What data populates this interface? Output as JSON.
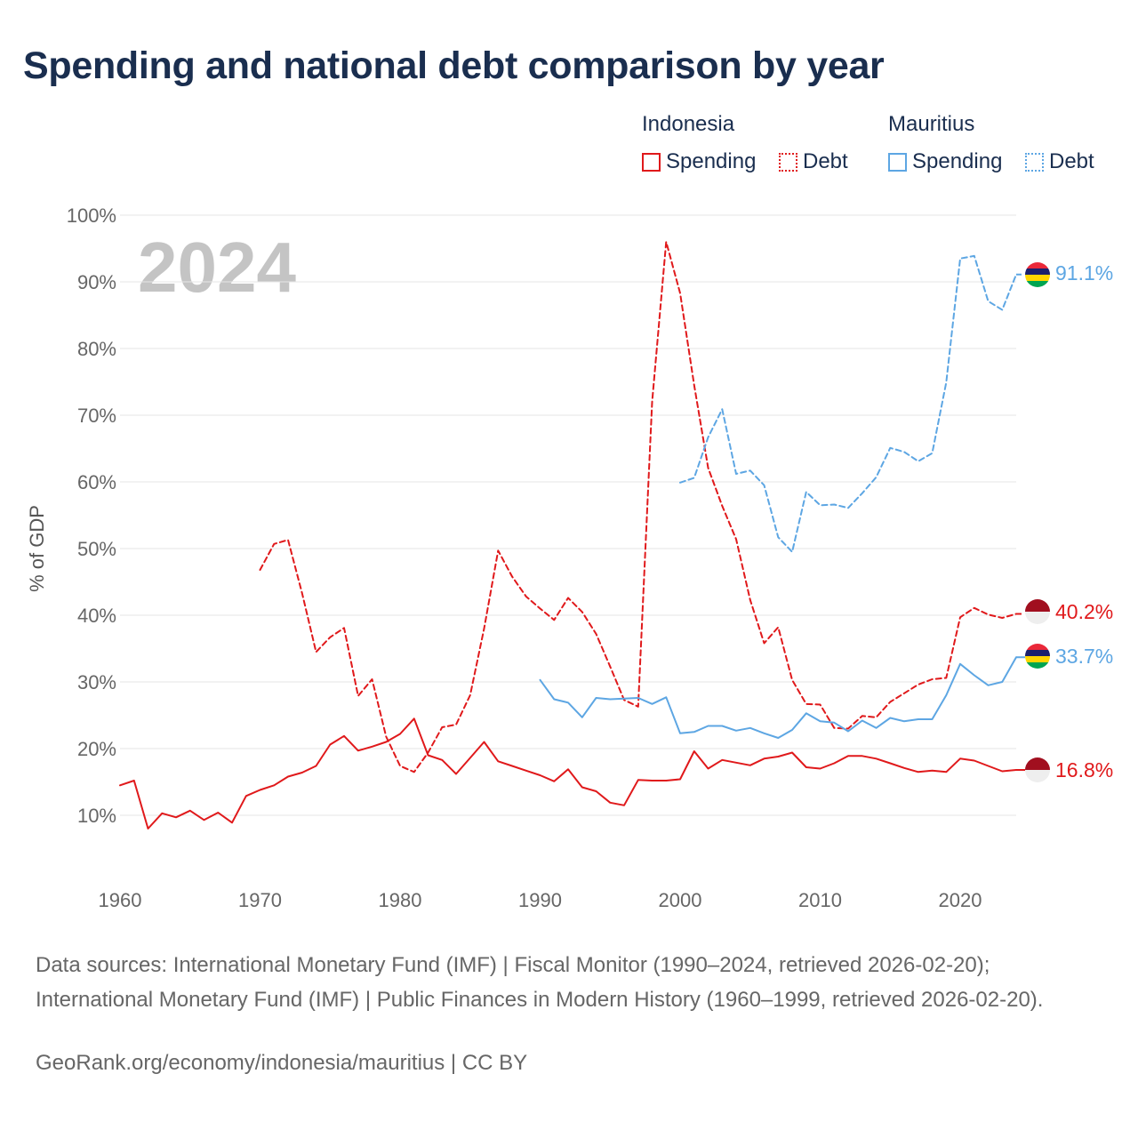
{
  "header": {
    "title": "Spending and national debt comparison by year"
  },
  "legend": {
    "groups": [
      {
        "name": "Indonesia",
        "spending_label": "Spending",
        "debt_label": "Debt"
      },
      {
        "name": "Mauritius",
        "spending_label": "Spending",
        "debt_label": "Debt"
      }
    ]
  },
  "footer": {
    "sources": "Data sources: International Monetary Fund (IMF) | Fiscal Monitor (1990–2024, retrieved 2026-02-20); International Monetary Fund (IMF) | Public Finances in Modern History (1960–1999, retrieved 2026-02-20).",
    "credit": "GeoRank.org/economy/indonesia/mauritius | CC BY"
  },
  "colors": {
    "indonesia": "#e0191b",
    "mauritius": "#5da6e3",
    "grid": "#e6e6e6",
    "tick_text": "#666666",
    "title": "#1a2e4f"
  },
  "chart_data": {
    "type": "line",
    "title": "Spending and national debt comparison by year",
    "current_year_label": "2024",
    "ylabel": "% of GDP",
    "xlabel": "",
    "xlim": [
      1960,
      2024
    ],
    "ylim": [
      0,
      100
    ],
    "x_ticks": [
      1960,
      1970,
      1980,
      1990,
      2000,
      2010,
      2020
    ],
    "y_ticks": [
      10,
      20,
      30,
      40,
      50,
      60,
      70,
      80,
      90,
      100
    ],
    "y_tick_labels": [
      "10%",
      "20%",
      "30%",
      "40%",
      "50%",
      "60%",
      "70%",
      "80%",
      "90%",
      "100%"
    ],
    "grid": true,
    "legend_position": "top-right",
    "series": [
      {
        "name": "Indonesia Spending",
        "country": "Indonesia",
        "metric": "Spending",
        "style": "solid",
        "color": "#e0191b",
        "end_label": "16.8%",
        "x": [
          1960,
          1961,
          1962,
          1963,
          1964,
          1965,
          1966,
          1967,
          1968,
          1969,
          1970,
          1971,
          1972,
          1973,
          1974,
          1975,
          1976,
          1977,
          1978,
          1979,
          1980,
          1981,
          1982,
          1983,
          1984,
          1985,
          1986,
          1987,
          1988,
          1989,
          1990,
          1991,
          1992,
          1993,
          1994,
          1995,
          1996,
          1997,
          1998,
          1999,
          2000,
          2001,
          2002,
          2003,
          2004,
          2005,
          2006,
          2007,
          2008,
          2009,
          2010,
          2011,
          2012,
          2013,
          2014,
          2015,
          2016,
          2017,
          2018,
          2019,
          2020,
          2021,
          2022,
          2023,
          2024
        ],
        "values": [
          14.5,
          15.2,
          8.0,
          10.3,
          9.7,
          10.7,
          9.3,
          10.4,
          8.9,
          12.9,
          13.8,
          14.5,
          15.8,
          16.4,
          17.4,
          20.6,
          21.9,
          19.7,
          20.3,
          21.0,
          22.2,
          24.5,
          19.0,
          18.3,
          16.2,
          18.6,
          21.0,
          18.1,
          17.4,
          16.7,
          16.0,
          15.1,
          16.9,
          14.2,
          13.6,
          11.9,
          11.5,
          15.3,
          15.2,
          15.2,
          15.4,
          19.6,
          17.0,
          18.3,
          17.9,
          17.5,
          18.5,
          18.8,
          19.4,
          17.2,
          17.0,
          17.8,
          18.9,
          18.9,
          18.5,
          17.8,
          17.1,
          16.5,
          16.7,
          16.5,
          18.5,
          18.2,
          17.4,
          16.6,
          16.8
        ]
      },
      {
        "name": "Indonesia Debt",
        "country": "Indonesia",
        "metric": "Debt",
        "style": "dashed",
        "color": "#e0191b",
        "end_label": "40.2%",
        "x": [
          1970,
          1971,
          1972,
          1973,
          1974,
          1975,
          1976,
          1977,
          1978,
          1979,
          1980,
          1981,
          1982,
          1983,
          1984,
          1985,
          1986,
          1987,
          1988,
          1989,
          1990,
          1991,
          1992,
          1993,
          1994,
          1995,
          1996,
          1997,
          1998,
          1999,
          2000,
          2001,
          2002,
          2003,
          2004,
          2005,
          2006,
          2007,
          2008,
          2009,
          2010,
          2011,
          2012,
          2013,
          2014,
          2015,
          2016,
          2017,
          2018,
          2019,
          2020,
          2021,
          2022,
          2023,
          2024
        ],
        "values": [
          46.8,
          50.7,
          51.3,
          43.3,
          34.5,
          36.7,
          38.1,
          27.9,
          30.4,
          21.8,
          17.4,
          16.5,
          19.4,
          23.2,
          23.6,
          28.0,
          38.0,
          49.7,
          45.8,
          42.8,
          41.0,
          39.3,
          42.6,
          40.5,
          37.2,
          32.3,
          27.3,
          26.3,
          72.0,
          96.0,
          88.3,
          74.5,
          62.1,
          56.4,
          51.4,
          42.3,
          35.8,
          38.2,
          30.3,
          26.7,
          26.6,
          23.1,
          23.0,
          24.9,
          24.7,
          27.0,
          28.3,
          29.6,
          30.4,
          30.6,
          39.7,
          41.1,
          40.1,
          39.6,
          40.2
        ]
      },
      {
        "name": "Mauritius Spending",
        "country": "Mauritius",
        "metric": "Spending",
        "style": "solid",
        "color": "#5da6e3",
        "end_label": "33.7%",
        "x": [
          1990,
          1991,
          1992,
          1993,
          1994,
          1995,
          1996,
          1997,
          1998,
          1999,
          2000,
          2001,
          2002,
          2003,
          2004,
          2005,
          2006,
          2007,
          2008,
          2009,
          2010,
          2011,
          2012,
          2013,
          2014,
          2015,
          2016,
          2017,
          2018,
          2019,
          2020,
          2021,
          2022,
          2023,
          2024
        ],
        "values": [
          30.3,
          27.4,
          26.9,
          24.7,
          27.6,
          27.4,
          27.5,
          27.6,
          26.7,
          27.7,
          22.3,
          22.5,
          23.4,
          23.4,
          22.7,
          23.1,
          22.3,
          21.6,
          22.8,
          25.3,
          24.1,
          23.9,
          22.6,
          24.2,
          23.1,
          24.6,
          24.1,
          24.4,
          24.4,
          28.0,
          32.7,
          31.0,
          29.5,
          30.0,
          33.7
        ]
      },
      {
        "name": "Mauritius Debt",
        "country": "Mauritius",
        "metric": "Debt",
        "style": "dashed",
        "color": "#5da6e3",
        "end_label": "91.1%",
        "x": [
          2000,
          2001,
          2002,
          2003,
          2004,
          2005,
          2006,
          2007,
          2008,
          2009,
          2010,
          2011,
          2012,
          2013,
          2014,
          2015,
          2016,
          2017,
          2018,
          2019,
          2020,
          2021,
          2022,
          2023,
          2024
        ],
        "values": [
          59.9,
          60.6,
          66.7,
          70.9,
          61.2,
          61.7,
          59.5,
          51.7,
          49.5,
          58.5,
          56.5,
          56.6,
          56.1,
          58.3,
          60.7,
          65.1,
          64.5,
          63.1,
          64.3,
          74.9,
          93.5,
          93.9,
          87.1,
          85.8,
          91.1
        ]
      }
    ]
  }
}
